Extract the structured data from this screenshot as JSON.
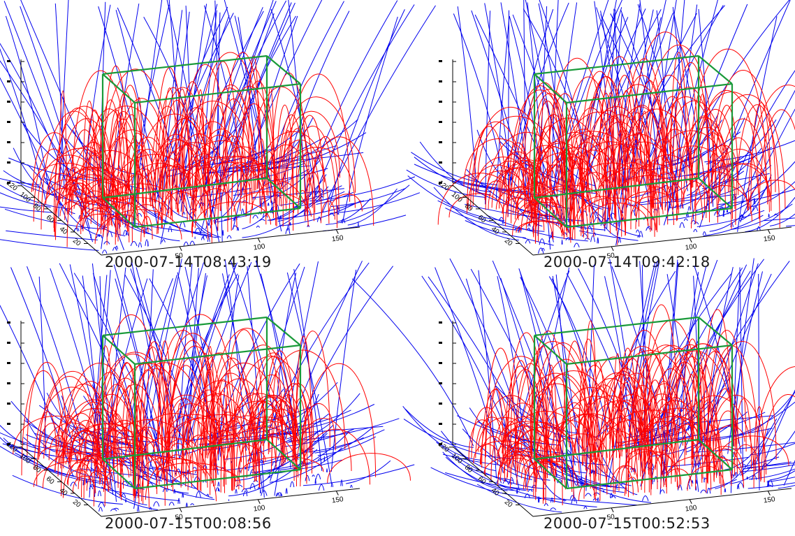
{
  "panels": [
    {
      "timestamp": "2000-07-14T08:43:19",
      "x_ticks": [
        "50",
        "100",
        "150"
      ],
      "y_ticks": [
        "20",
        "40",
        "60",
        "80",
        "100",
        "120"
      ]
    },
    {
      "timestamp": "2000-07-14T09:42:18",
      "x_ticks": [
        "50",
        "100",
        "150"
      ],
      "y_ticks": [
        "20",
        "40",
        "60",
        "80",
        "100",
        "120"
      ]
    },
    {
      "timestamp": "2000-07-15T00:08:56",
      "x_ticks": [
        "50",
        "100",
        "150"
      ],
      "y_ticks": [
        "20",
        "40",
        "60",
        "80",
        "100",
        "120"
      ]
    },
    {
      "timestamp": "2000-07-15T00:52:53",
      "x_ticks": [
        "50",
        "100",
        "150"
      ],
      "y_ticks": [
        "20",
        "40",
        "60",
        "80",
        "100",
        "120"
      ]
    }
  ],
  "colors": {
    "open_field_lines": "#0000ee",
    "closed_field_lines": "#ff0000",
    "box_outline": "#1a9a3a",
    "axes": "#000000"
  }
}
